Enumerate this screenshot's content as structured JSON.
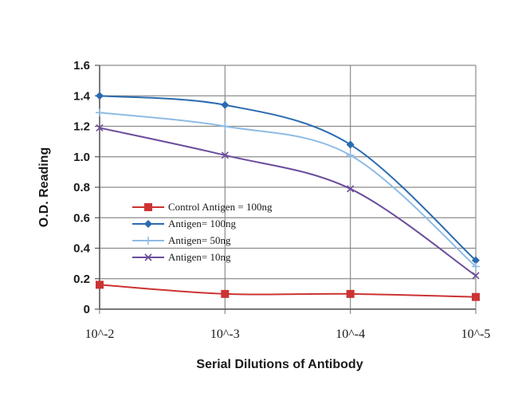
{
  "chart_data": {
    "type": "line",
    "xlabel": "Serial Dilutions of Antibody",
    "ylabel": "O.D. Reading",
    "categories": [
      "10^-2",
      "10^-3",
      "10^-4",
      "10^-5"
    ],
    "ylim": [
      0,
      1.6
    ],
    "yticks": [
      "0",
      "0.2",
      "0.4",
      "0.6",
      "0.8",
      "1.0",
      "1.2",
      "1.4",
      "1.6"
    ],
    "grid": true,
    "legend": "center-left",
    "series": [
      {
        "name": "Control Antigen = 100ng",
        "values": [
          0.16,
          0.1,
          0.1,
          0.08
        ],
        "color": "#cc3333",
        "marker": "square"
      },
      {
        "name": "Antigen= 100ng",
        "values": [
          1.4,
          1.34,
          1.08,
          0.32
        ],
        "color": "#2a6ab0",
        "marker": "diamond"
      },
      {
        "name": "Antigen= 50ng",
        "values": [
          1.29,
          1.2,
          1.01,
          0.28
        ],
        "color": "#8fbbe4",
        "marker": "plus"
      },
      {
        "name": "Antigen= 10ng",
        "values": [
          1.19,
          1.01,
          0.79,
          0.22
        ],
        "color": "#6a4c9c",
        "marker": "x"
      }
    ]
  }
}
